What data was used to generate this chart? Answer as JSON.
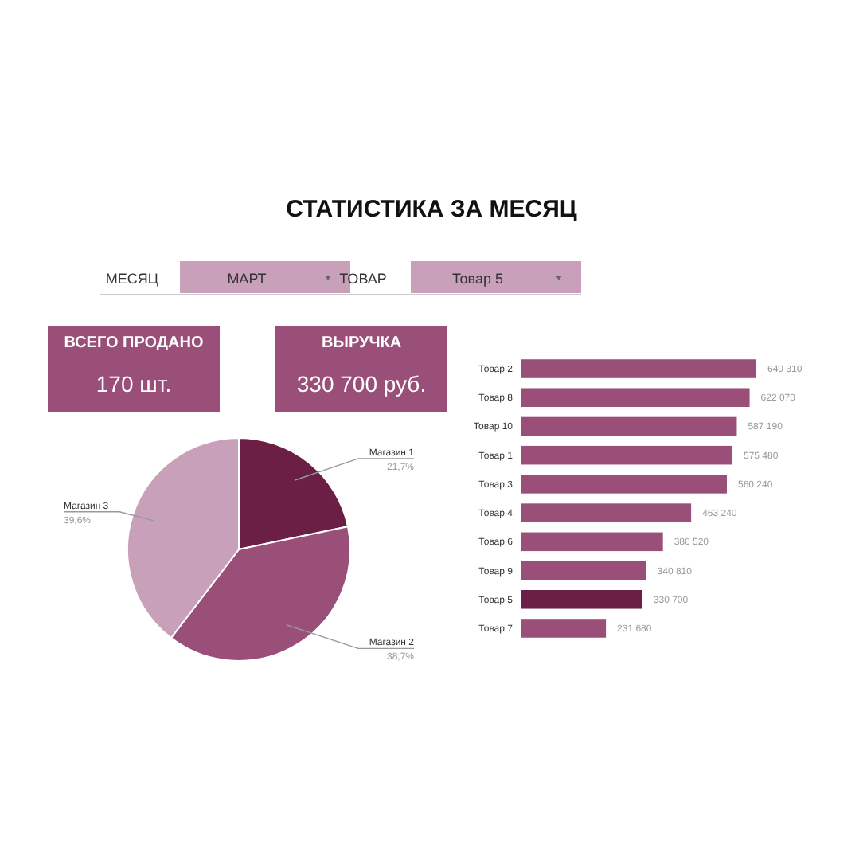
{
  "chart_data": [
    {
      "type": "other",
      "title": "СТАТИСТИКА ЗА МЕСЯЦ",
      "annotations": [
        "МЕСЯЦ",
        "МАРТ",
        "ТОВАР",
        "Товар 5",
        "ВСЕГО ПРОДАНО",
        "170 шт.",
        "ВЫРУЧКА",
        "330 700 руб."
      ]
    },
    {
      "type": "pie",
      "categories": [
        "Магазин 1",
        "Магазин 2",
        "Магазин 3"
      ],
      "values": [
        21.7,
        38.7,
        39.6
      ],
      "colors": [
        "#6b1f45",
        "#9a4f78",
        "#c9a0ba"
      ],
      "value_labels": [
        "21,7%",
        "38,7%",
        "39,6%"
      ]
    },
    {
      "type": "bar",
      "orientation": "horizontal",
      "categories": [
        "Товар 2",
        "Товар 8",
        "Товар 10",
        "Товар 1",
        "Товар 3",
        "Товар 4",
        "Товар 6",
        "Товар 9",
        "Товар 5",
        "Товар 7"
      ],
      "values": [
        640310,
        622070,
        587190,
        575480,
        560240,
        463240,
        386520,
        340810,
        330700,
        231680
      ],
      "colors": [
        "#9a4f78",
        "#9a4f78",
        "#9a4f78",
        "#9a4f78",
        "#9a4f78",
        "#9a4f78",
        "#9a4f78",
        "#9a4f78",
        "#6b1f45",
        "#9a4f78"
      ],
      "value_labels": [
        "640 310",
        "622 070",
        "587 190",
        "575 480",
        "560 240",
        "463 240",
        "386 520",
        "340 810",
        "330 700",
        "231 680"
      ]
    }
  ]
}
